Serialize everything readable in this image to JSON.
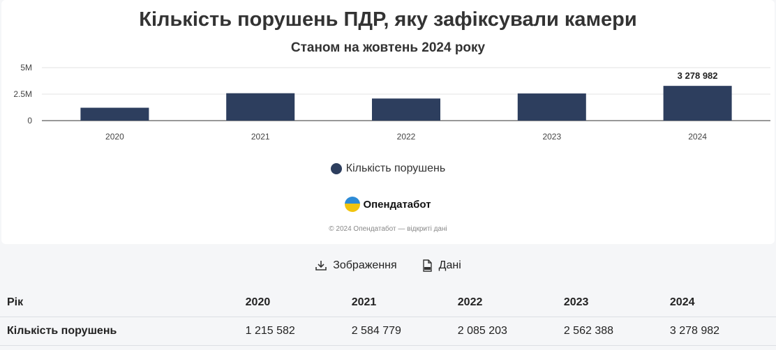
{
  "title": "Кількість порушень ПДР, яку зафіксували камери",
  "subtitle": "Станом на жовтень 2024 року",
  "chart_data": {
    "type": "bar",
    "categories": [
      "2020",
      "2021",
      "2022",
      "2023",
      "2024"
    ],
    "series": [
      {
        "name": "Кількість порушень",
        "values": [
          1215582,
          2584779,
          2085203,
          2562388,
          3278982
        ]
      }
    ],
    "y_ticks": [
      {
        "value": 0,
        "label": "0"
      },
      {
        "value": 2500000,
        "label": "2.5M"
      },
      {
        "value": 5000000,
        "label": "5M"
      }
    ],
    "ylim": [
      0,
      5000000
    ],
    "data_labels": [
      {
        "index": 4,
        "label": "3 278 982"
      }
    ],
    "bar_color": "#2d3e5e",
    "grid": true,
    "legend_position": "bottom"
  },
  "legend": {
    "label": "Кількість порушень"
  },
  "brand": {
    "name": "Опендатабот"
  },
  "copyright": "© 2024 Опендатабот — відкриті дані",
  "downloads": {
    "image_label": "Зображення",
    "image_icon": "download-icon",
    "data_label": "Дані",
    "data_icon": "csv-file-icon"
  },
  "table": {
    "header_label": "Рік",
    "years": [
      "2020",
      "2021",
      "2022",
      "2023",
      "2024"
    ],
    "row_label": "Кількість порушень",
    "values": [
      "1 215 582",
      "2 584 779",
      "2 085 203",
      "2 562 388",
      "3 278 982"
    ]
  }
}
